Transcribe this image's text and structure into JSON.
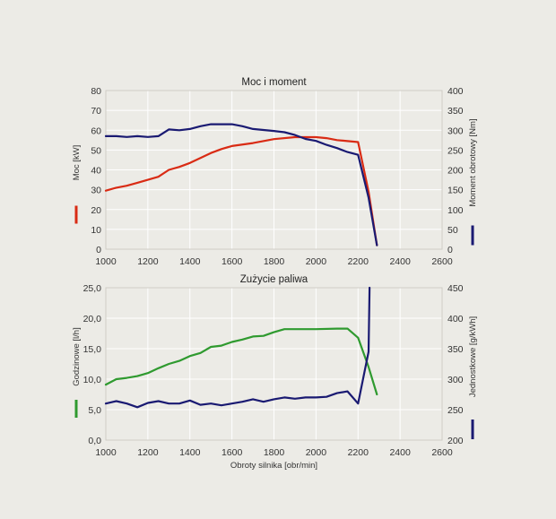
{
  "colors": {
    "background": "#ecebe6",
    "red": "#d92b14",
    "navy": "#1a1a72",
    "green": "#2f9a2f"
  },
  "chart_data": [
    {
      "type": "line",
      "title": "Moc i moment",
      "xlim": [
        1000,
        2600
      ],
      "xticks": [
        "1000",
        "1200",
        "1400",
        "1600",
        "1800",
        "2000",
        "2200",
        "2400",
        "2600"
      ],
      "ylabel_left": "Moc [kW]",
      "ylim_left": [
        0,
        80
      ],
      "yticks_left": [
        "0",
        "10",
        "20",
        "30",
        "40",
        "50",
        "60",
        "70",
        "80"
      ],
      "ylabel_right": "Moment obrotowy [Nm]",
      "ylim_right": [
        0,
        400
      ],
      "yticks_right": [
        "0",
        "50",
        "100",
        "150",
        "200",
        "250",
        "300",
        "350",
        "400"
      ],
      "grid": true,
      "series": [
        {
          "axis": "left",
          "color": "red",
          "points": [
            [
              1000,
              29.5
            ],
            [
              1050,
              31
            ],
            [
              1100,
              32
            ],
            [
              1150,
              33.5
            ],
            [
              1200,
              35
            ],
            [
              1250,
              36.5
            ],
            [
              1300,
              40
            ],
            [
              1350,
              41.5
            ],
            [
              1400,
              43.5
            ],
            [
              1450,
              46
            ],
            [
              1500,
              48.5
            ],
            [
              1550,
              50.5
            ],
            [
              1600,
              52
            ],
            [
              1700,
              53.5
            ],
            [
              1800,
              55.5
            ],
            [
              1900,
              56.5
            ],
            [
              2000,
              56.5
            ],
            [
              2050,
              56
            ],
            [
              2100,
              55
            ],
            [
              2150,
              54.5
            ],
            [
              2200,
              54
            ],
            [
              2250,
              29
            ],
            [
              2290,
              2
            ]
          ]
        },
        {
          "axis": "right",
          "color": "navy",
          "points": [
            [
              1000,
              285
            ],
            [
              1050,
              285
            ],
            [
              1100,
              283
            ],
            [
              1150,
              285
            ],
            [
              1200,
              283
            ],
            [
              1250,
              285
            ],
            [
              1300,
              302
            ],
            [
              1350,
              300
            ],
            [
              1400,
              303
            ],
            [
              1450,
              310
            ],
            [
              1500,
              315
            ],
            [
              1600,
              315
            ],
            [
              1650,
              310
            ],
            [
              1700,
              303
            ],
            [
              1800,
              298
            ],
            [
              1850,
              295
            ],
            [
              1900,
              288
            ],
            [
              1950,
              278
            ],
            [
              2000,
              273
            ],
            [
              2050,
              263
            ],
            [
              2100,
              255
            ],
            [
              2150,
              245
            ],
            [
              2200,
              238
            ],
            [
              2250,
              130
            ],
            [
              2290,
              10
            ]
          ]
        }
      ]
    },
    {
      "type": "line",
      "title": "Zużycie paliwa",
      "xlabel": "Obroty silnika [obr/min]",
      "xlim": [
        1000,
        2600
      ],
      "xticks": [
        "1000",
        "1200",
        "1400",
        "1600",
        "1800",
        "2000",
        "2200",
        "2400",
        "2600"
      ],
      "ylabel_left": "Godzinowe [l/h]",
      "ylim_left": [
        0,
        25
      ],
      "yticks_left": [
        "0,0",
        "5,0",
        "10,0",
        "15,0",
        "20,0",
        "25,0"
      ],
      "ylabel_right": "Jednostkowe [g/kWh]",
      "ylim_right": [
        200,
        450
      ],
      "yticks_right": [
        "200",
        "250",
        "300",
        "350",
        "400",
        "450"
      ],
      "grid": true,
      "series": [
        {
          "axis": "left",
          "color": "green",
          "points": [
            [
              1000,
              9.1
            ],
            [
              1050,
              10
            ],
            [
              1100,
              10.2
            ],
            [
              1150,
              10.5
            ],
            [
              1200,
              11
            ],
            [
              1250,
              11.8
            ],
            [
              1300,
              12.5
            ],
            [
              1350,
              13
            ],
            [
              1400,
              13.8
            ],
            [
              1450,
              14.3
            ],
            [
              1500,
              15.3
            ],
            [
              1550,
              15.5
            ],
            [
              1600,
              16.1
            ],
            [
              1650,
              16.5
            ],
            [
              1700,
              17
            ],
            [
              1750,
              17.1
            ],
            [
              1800,
              17.7
            ],
            [
              1850,
              18.2
            ],
            [
              1900,
              18.2
            ],
            [
              2000,
              18.2
            ],
            [
              2100,
              18.3
            ],
            [
              2150,
              18.3
            ],
            [
              2200,
              16.8
            ],
            [
              2250,
              12
            ],
            [
              2290,
              7.5
            ]
          ]
        },
        {
          "axis": "right",
          "color": "navy",
          "points": [
            [
              1000,
              260
            ],
            [
              1050,
              264
            ],
            [
              1100,
              260
            ],
            [
              1150,
              254
            ],
            [
              1200,
              261
            ],
            [
              1250,
              264
            ],
            [
              1300,
              260
            ],
            [
              1350,
              260
            ],
            [
              1400,
              265
            ],
            [
              1450,
              258
            ],
            [
              1500,
              260
            ],
            [
              1550,
              257
            ],
            [
              1600,
              260
            ],
            [
              1650,
              263
            ],
            [
              1700,
              267
            ],
            [
              1750,
              263
            ],
            [
              1800,
              267
            ],
            [
              1850,
              270
            ],
            [
              1900,
              268
            ],
            [
              1950,
              270
            ],
            [
              2000,
              270
            ],
            [
              2050,
              271
            ],
            [
              2100,
              277
            ],
            [
              2150,
              280
            ],
            [
              2200,
              260
            ],
            [
              2250,
              345
            ],
            [
              2255,
              450
            ]
          ]
        }
      ]
    }
  ]
}
